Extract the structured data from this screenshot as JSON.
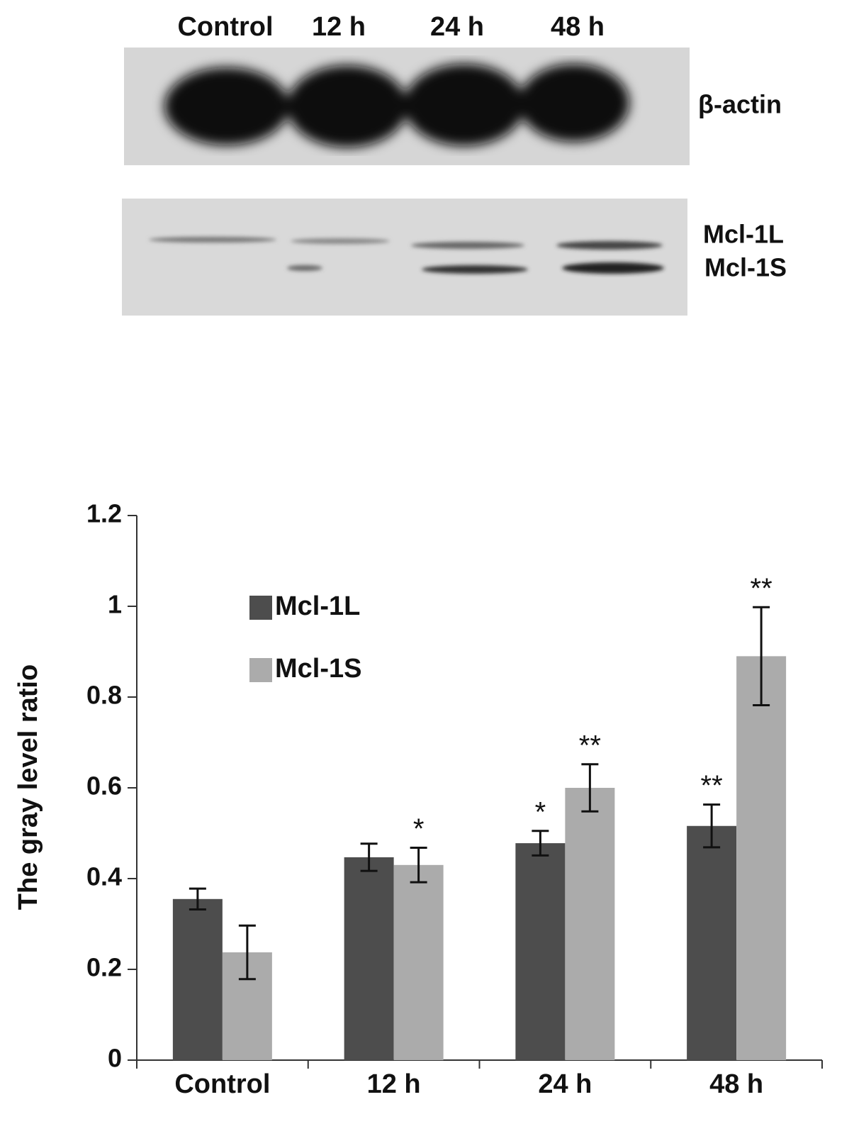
{
  "blot": {
    "lanes": [
      "Control",
      "12 h",
      "24 h",
      "48 h"
    ],
    "bands": [
      "β-actin",
      "Mcl-1L",
      "Mcl-1S"
    ]
  },
  "chart_data": {
    "type": "bar",
    "ylabel": "The gray level ratio",
    "categories": [
      "Control",
      "12 h",
      "24 h",
      "48 h"
    ],
    "series": [
      {
        "name": "Mcl-1L",
        "color": "#4d4d4d",
        "values": [
          0.355,
          0.447,
          0.478,
          0.516
        ],
        "errors": [
          0.023,
          0.03,
          0.027,
          0.047
        ],
        "annotations": [
          null,
          null,
          "*",
          "**"
        ]
      },
      {
        "name": "Mcl-1S",
        "color": "#ababab",
        "values": [
          0.2375,
          0.43,
          0.6,
          0.89
        ],
        "errors": [
          0.059,
          0.038,
          0.052,
          0.108
        ],
        "annotations": [
          null,
          "*",
          "**",
          "**"
        ]
      }
    ],
    "ylim": [
      0,
      1.2
    ],
    "yticks": [
      0,
      0.2,
      0.4,
      0.6,
      0.8,
      1,
      1.2
    ],
    "grid": false,
    "legend": "upper left"
  }
}
